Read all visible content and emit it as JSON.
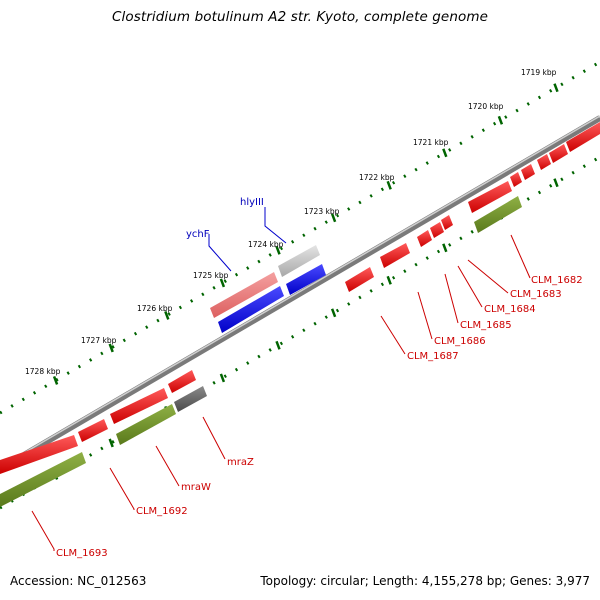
{
  "title": "Clostridium botulinum A2 str. Kyoto, complete genome",
  "accession_text": "Accession: NC_012563",
  "topology_text": "Topology: circular; Length: 4,155,278 bp; Genes: 3,977",
  "colors": {
    "cds": "#ee0000",
    "gene": "#6b8e23",
    "backbone": "#808080",
    "tick": "#006400",
    "blue_label": "#0000bb",
    "red_label": "#cc0000",
    "pink": "#e87070",
    "light_gray": "#c4c4c4",
    "blue": "#0000ee",
    "dark_gray": "#606060"
  },
  "ticks": [
    {
      "label": "1719 kbp"
    },
    {
      "label": "1720 kbp"
    },
    {
      "label": "1721 kbp"
    },
    {
      "label": "1722 kbp"
    },
    {
      "label": "1723 kbp"
    },
    {
      "label": "1724 kbp"
    },
    {
      "label": "1725 kbp"
    },
    {
      "label": "1726 kbp"
    },
    {
      "label": "1727 kbp"
    },
    {
      "label": "1728 kbp"
    }
  ],
  "features": [
    {
      "name": "CLM_1682",
      "color": "red"
    },
    {
      "name": "CLM_1683",
      "color": "red"
    },
    {
      "name": "CLM_1684",
      "color": "red"
    },
    {
      "name": "CLM_1685",
      "color": "red"
    },
    {
      "name": "CLM_1686",
      "color": "red"
    },
    {
      "name": "CLM_1687",
      "color": "red"
    },
    {
      "name": "hlyIII",
      "color": "blue"
    },
    {
      "name": "ychF",
      "color": "blue"
    },
    {
      "name": "mraZ",
      "color": "red"
    },
    {
      "name": "mraW",
      "color": "red"
    },
    {
      "name": "CLM_1692",
      "color": "red"
    },
    {
      "name": "CLM_1693",
      "color": "red"
    }
  ]
}
